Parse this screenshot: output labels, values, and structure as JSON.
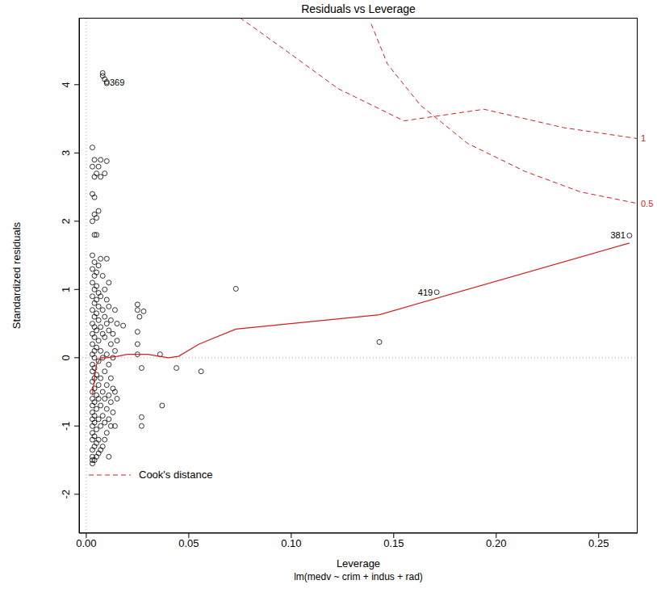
{
  "chart_data": {
    "type": "scatter",
    "title": "Residuals vs Leverage",
    "subtitle": "lm(medv ~ crim + indus + rad)",
    "x_label": "Leverage",
    "y_label": "Standardized residuals",
    "xlim": [
      -0.0035,
      0.269
    ],
    "ylim": [
      -2.57,
      4.98
    ],
    "xticks": [
      {
        "value": 0,
        "label": "0.00"
      },
      {
        "value": 0.05,
        "label": "0.05"
      },
      {
        "value": 0.1,
        "label": "0.10"
      },
      {
        "value": 0.15,
        "label": "0.15"
      },
      {
        "value": 0.2,
        "label": "0.20"
      },
      {
        "value": 0.25,
        "label": "0.25"
      }
    ],
    "yticks": [
      -2,
      -1,
      0,
      1,
      2,
      3,
      4
    ],
    "grid": false,
    "marker": "circle",
    "color": "#000000",
    "hlines": [
      0
    ],
    "vlines": [
      0
    ],
    "legend": "lower left",
    "points": [
      [
        0.003,
        -1.55
      ],
      [
        0.003,
        -1.5
      ],
      [
        0.003,
        -1.45
      ],
      [
        0.003,
        -1.35
      ],
      [
        0.003,
        -1.2
      ],
      [
        0.003,
        -1.1
      ],
      [
        0.003,
        -1.0
      ],
      [
        0.003,
        -0.9
      ],
      [
        0.003,
        -0.8
      ],
      [
        0.003,
        -0.7
      ],
      [
        0.003,
        -0.6
      ],
      [
        0.003,
        -0.5
      ],
      [
        0.003,
        -0.35
      ],
      [
        0.003,
        -0.2
      ],
      [
        0.003,
        -0.1
      ],
      [
        0.003,
        0.05
      ],
      [
        0.003,
        0.2
      ],
      [
        0.003,
        0.35
      ],
      [
        0.003,
        0.5
      ],
      [
        0.003,
        0.7
      ],
      [
        0.003,
        0.9
      ],
      [
        0.003,
        1.1
      ],
      [
        0.003,
        1.3
      ],
      [
        0.003,
        1.5
      ],
      [
        0.003,
        2.0
      ],
      [
        0.003,
        2.4
      ],
      [
        0.003,
        2.8
      ],
      [
        0.003,
        3.08
      ],
      [
        0.004,
        -1.5
      ],
      [
        0.004,
        -1.3
      ],
      [
        0.004,
        -1.15
      ],
      [
        0.004,
        -0.95
      ],
      [
        0.004,
        -0.85
      ],
      [
        0.004,
        -0.65
      ],
      [
        0.004,
        -0.45
      ],
      [
        0.004,
        -0.3
      ],
      [
        0.004,
        -0.15
      ],
      [
        0.004,
        0.0
      ],
      [
        0.004,
        0.1
      ],
      [
        0.004,
        0.3
      ],
      [
        0.004,
        0.45
      ],
      [
        0.004,
        0.6
      ],
      [
        0.004,
        0.8
      ],
      [
        0.004,
        1.0
      ],
      [
        0.004,
        1.2
      ],
      [
        0.004,
        1.4
      ],
      [
        0.004,
        1.8
      ],
      [
        0.004,
        2.1
      ],
      [
        0.004,
        2.35
      ],
      [
        0.004,
        2.65
      ],
      [
        0.004,
        2.9
      ],
      [
        0.005,
        -1.45
      ],
      [
        0.005,
        -1.25
      ],
      [
        0.005,
        -1.05
      ],
      [
        0.005,
        -0.75
      ],
      [
        0.005,
        -0.55
      ],
      [
        0.005,
        -0.25
      ],
      [
        0.005,
        0.15
      ],
      [
        0.005,
        0.4
      ],
      [
        0.005,
        0.65
      ],
      [
        0.005,
        0.85
      ],
      [
        0.005,
        1.05
      ],
      [
        0.005,
        1.25
      ],
      [
        0.005,
        1.8
      ],
      [
        0.005,
        2.05
      ],
      [
        0.005,
        2.7
      ],
      [
        0.006,
        -1.4
      ],
      [
        0.006,
        -1.2
      ],
      [
        0.006,
        -0.9
      ],
      [
        0.006,
        -0.6
      ],
      [
        0.006,
        -0.4
      ],
      [
        0.006,
        -0.05
      ],
      [
        0.006,
        0.25
      ],
      [
        0.006,
        0.55
      ],
      [
        0.006,
        0.75
      ],
      [
        0.006,
        0.95
      ],
      [
        0.006,
        1.35
      ],
      [
        0.006,
        2.15
      ],
      [
        0.006,
        2.8
      ],
      [
        0.007,
        -1.35
      ],
      [
        0.007,
        -1.0
      ],
      [
        0.007,
        -0.7
      ],
      [
        0.007,
        -0.3
      ],
      [
        0.007,
        0.1
      ],
      [
        0.007,
        0.45
      ],
      [
        0.007,
        0.9
      ],
      [
        0.007,
        1.45
      ],
      [
        0.007,
        2.9
      ],
      [
        0.007,
        2.65
      ],
      [
        0.008,
        -1.3
      ],
      [
        0.008,
        -0.85
      ],
      [
        0.008,
        -0.5
      ],
      [
        0.008,
        0.0
      ],
      [
        0.008,
        0.35
      ],
      [
        0.008,
        0.7
      ],
      [
        0.008,
        1.2
      ],
      [
        0.008,
        4.17
      ],
      [
        0.008,
        4.13
      ],
      [
        0.009,
        -1.2
      ],
      [
        0.009,
        -0.95
      ],
      [
        0.009,
        -0.6
      ],
      [
        0.009,
        -0.2
      ],
      [
        0.009,
        0.3
      ],
      [
        0.009,
        0.6
      ],
      [
        0.009,
        1.0
      ],
      [
        0.009,
        2.7
      ],
      [
        0.009,
        4.08
      ],
      [
        0.01,
        -1.1
      ],
      [
        0.01,
        -0.75
      ],
      [
        0.01,
        -0.4
      ],
      [
        0.01,
        0.05
      ],
      [
        0.01,
        0.5
      ],
      [
        0.01,
        0.85
      ],
      [
        0.01,
        1.45
      ],
      [
        0.01,
        2.88
      ],
      [
        0.01,
        4.04
      ],
      [
        0.01,
        4.02
      ],
      [
        0.011,
        -1.45
      ],
      [
        0.011,
        -0.9
      ],
      [
        0.011,
        -0.55
      ],
      [
        0.011,
        -0.1
      ],
      [
        0.011,
        0.4
      ],
      [
        0.011,
        0.75
      ],
      [
        0.011,
        1.1
      ],
      [
        0.012,
        -1.0
      ],
      [
        0.012,
        -0.65
      ],
      [
        0.012,
        -0.3
      ],
      [
        0.012,
        0.2
      ],
      [
        0.012,
        0.55
      ],
      [
        0.013,
        -0.8
      ],
      [
        0.013,
        -0.45
      ],
      [
        0.013,
        0.0
      ],
      [
        0.013,
        0.35
      ],
      [
        0.014,
        -1.0
      ],
      [
        0.014,
        -0.5
      ],
      [
        0.014,
        0.1
      ],
      [
        0.014,
        0.7
      ],
      [
        0.015,
        -0.6
      ],
      [
        0.015,
        0.25
      ],
      [
        0.015,
        0.5
      ],
      [
        0.018,
        0.47
      ],
      [
        0.025,
        0.78
      ],
      [
        0.025,
        0.7
      ],
      [
        0.026,
        0.6
      ],
      [
        0.025,
        0.38
      ],
      [
        0.025,
        0.2
      ],
      [
        0.025,
        0.05
      ],
      [
        0.028,
        0.68
      ],
      [
        0.027,
        -0.15
      ],
      [
        0.027,
        -0.87
      ],
      [
        0.027,
        -1.0
      ],
      [
        0.036,
        0.05
      ],
      [
        0.037,
        -0.7
      ],
      [
        0.044,
        -0.15
      ],
      [
        0.056,
        -0.2
      ],
      [
        0.073,
        1.01
      ],
      [
        0.143,
        0.23
      ],
      [
        0.171,
        0.96
      ],
      [
        0.265,
        1.79
      ]
    ],
    "point_labels": [
      {
        "x": 0.0095,
        "y": 4.03,
        "label": "369"
      },
      {
        "x": 0.171,
        "y": 0.96,
        "label": "419"
      },
      {
        "x": 0.265,
        "y": 1.79,
        "label": "381"
      }
    ],
    "smoother": {
      "color": "#cc2222",
      "x": [
        0.003,
        0.004,
        0.005,
        0.007,
        0.01,
        0.015,
        0.02,
        0.03,
        0.04,
        0.045,
        0.055,
        0.073,
        0.143,
        0.265
      ],
      "y": [
        -0.55,
        -0.3,
        -0.1,
        0.0,
        0.0,
        0.02,
        0.05,
        0.05,
        0.0,
        0.02,
        0.2,
        0.42,
        0.63,
        1.68
      ]
    },
    "cooks_distance": {
      "name": "Cook's distance",
      "color": "#cc2222",
      "line_style": "dashed",
      "contours": [
        {
          "level": 0.5,
          "x": [
            0.139,
            0.147,
            0.163,
            0.186,
            0.214,
            0.241,
            0.269
          ],
          "y": [
            4.89,
            4.3,
            3.7,
            3.14,
            2.73,
            2.43,
            2.26
          ]
        },
        {
          "level": 1,
          "x": [
            0.075,
            0.096,
            0.123,
            0.155,
            0.194,
            0.233,
            0.269
          ],
          "y": [
            4.98,
            4.53,
            3.94,
            3.47,
            3.64,
            3.37,
            3.21
          ]
        }
      ]
    }
  }
}
